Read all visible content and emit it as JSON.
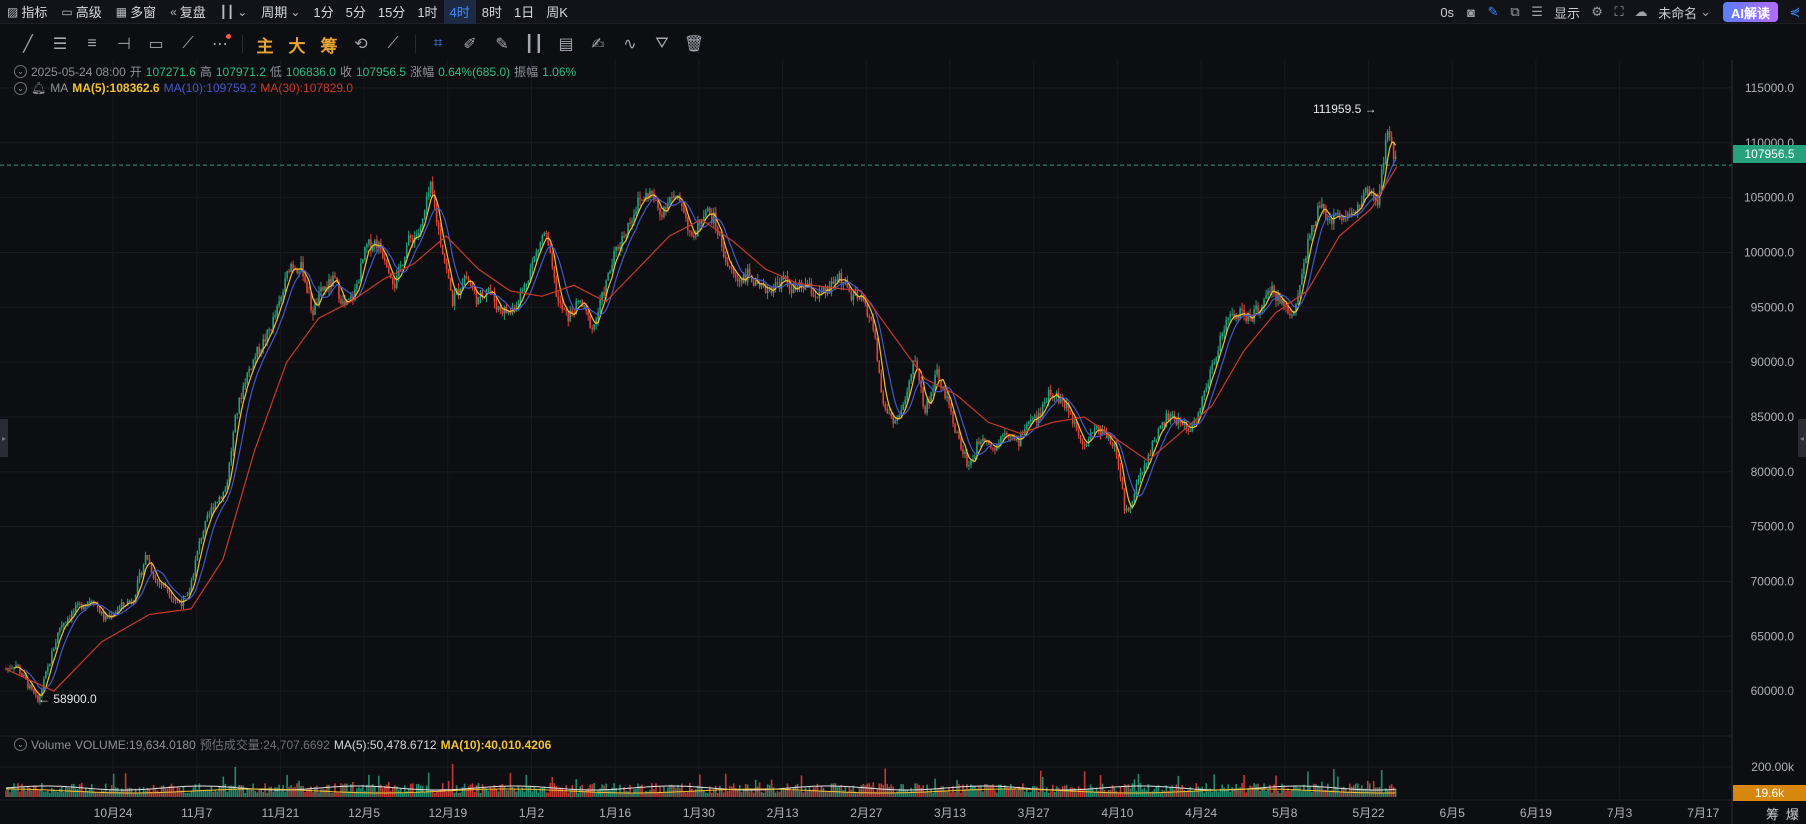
{
  "toolbar": {
    "indicators_label": "指标",
    "advanced_label": "高级",
    "multiwin_label": "多窗",
    "replay_label": "复盘",
    "period_label": "周期",
    "timeframes": [
      "1分",
      "5分",
      "15分",
      "1时",
      "4时",
      "8时",
      "1日",
      "周K"
    ],
    "active_timeframe": "4时",
    "countdown": "0s",
    "display_label": "显示",
    "layout_name": "未命名",
    "ai_label": "AI解读"
  },
  "draw_tools": {
    "main_label": "主",
    "big_label": "大",
    "chip_label": "筹"
  },
  "legend": {
    "date": "2025-05-24 08:00",
    "open_label": "开",
    "open": "107271.6",
    "high_label": "高",
    "high": "107971.2",
    "low_label": "低",
    "low": "106836.0",
    "close_label": "收",
    "close": "107956.5",
    "change_label": "涨幅",
    "change": "0.64%(685.0)",
    "amplitude_label": "振幅",
    "amplitude": "1.06%",
    "ma_name": "MA",
    "ma5": "MA(5):108362.6",
    "ma10": "MA(10):109759.2",
    "ma30": "MA(30):107829.0"
  },
  "volume_legend": {
    "name": "Volume",
    "volume": "VOLUME:19,634.0180",
    "estimated": "预估成交量:24,707.6692",
    "ma5": "MA(5):50,478.6712",
    "ma10": "MA(10):40,010.4206"
  },
  "current_price": "107956.5",
  "current_volume": "19.6k",
  "high_annotation": "111959.5 →",
  "low_annotation": "← 58900.0",
  "corner_labels": [
    "筹",
    "爆"
  ],
  "colors": {
    "up": "#26a17b",
    "down": "#e0433a",
    "ma5": "#f1c232",
    "ma10": "#4457c9",
    "ma30": "#c9392c",
    "background": "#0d0e11"
  },
  "chart_data": {
    "type": "candlestick",
    "timeframe": "4h",
    "y_ticks": [
      115000,
      110000,
      105000,
      100000,
      95000,
      90000,
      85000,
      80000,
      75000,
      70000,
      65000,
      60000
    ],
    "y_tick_labels": [
      "115000.0",
      "110000.0",
      "105000.0",
      "100000.0",
      "95000.0",
      "90000.0",
      "85000.0",
      "80000.0",
      "75000.0",
      "70000.0",
      "65000.0",
      "60000.0"
    ],
    "ylim": [
      56000,
      117000
    ],
    "volume_tick_label": "200.00k",
    "x_tick_labels": [
      "10月24",
      "11月7",
      "11月21",
      "12月5",
      "12月19",
      "1月2",
      "1月16",
      "1月30",
      "2月13",
      "2月27",
      "3月13",
      "3月27",
      "4月10",
      "4月24",
      "5月8",
      "5月22",
      "6月5",
      "6月19",
      "7月3",
      "7月17"
    ],
    "price_path": [
      [
        0,
        62000
      ],
      [
        0.3,
        62500
      ],
      [
        0.6,
        61000
      ],
      [
        1.0,
        59000
      ],
      [
        1.3,
        62000
      ],
      [
        1.7,
        66000
      ],
      [
        2.2,
        67500
      ],
      [
        2.7,
        68500
      ],
      [
        3.1,
        66500
      ],
      [
        3.5,
        67500
      ],
      [
        4.0,
        68500
      ],
      [
        4.4,
        72500
      ],
      [
        4.7,
        70000
      ],
      [
        5.0,
        69500
      ],
      [
        5.4,
        68000
      ],
      [
        5.7,
        68500
      ],
      [
        6.1,
        74000
      ],
      [
        6.5,
        77000
      ],
      [
        6.9,
        78500
      ],
      [
        7.2,
        85000
      ],
      [
        7.5,
        88500
      ],
      [
        7.8,
        90500
      ],
      [
        8.2,
        92500
      ],
      [
        8.6,
        95500
      ],
      [
        8.9,
        99000
      ],
      [
        9.3,
        98500
      ],
      [
        9.6,
        94500
      ],
      [
        9.9,
        96500
      ],
      [
        10.3,
        97500
      ],
      [
        10.6,
        95000
      ],
      [
        10.9,
        96000
      ],
      [
        11.3,
        100500
      ],
      [
        11.6,
        101000
      ],
      [
        11.9,
        99500
      ],
      [
        12.2,
        97000
      ],
      [
        12.6,
        101000
      ],
      [
        13.0,
        102000
      ],
      [
        13.3,
        106000
      ],
      [
        13.7,
        100000
      ],
      [
        14.0,
        95500
      ],
      [
        14.4,
        98000
      ],
      [
        14.8,
        95500
      ],
      [
        15.1,
        97000
      ],
      [
        15.4,
        95000
      ],
      [
        15.8,
        94500
      ],
      [
        16.2,
        96500
      ],
      [
        16.5,
        99000
      ],
      [
        16.9,
        102000
      ],
      [
        17.3,
        95500
      ],
      [
        17.6,
        94000
      ],
      [
        18.0,
        95500
      ],
      [
        18.4,
        93000
      ],
      [
        18.7,
        96000
      ],
      [
        19.1,
        100000
      ],
      [
        19.5,
        102500
      ],
      [
        19.8,
        104500
      ],
      [
        20.2,
        105500
      ],
      [
        20.5,
        103500
      ],
      [
        20.8,
        105000
      ],
      [
        21.2,
        104500
      ],
      [
        21.5,
        101000
      ],
      [
        21.9,
        104000
      ],
      [
        22.2,
        103000
      ],
      [
        22.6,
        99000
      ],
      [
        22.9,
        97500
      ],
      [
        23.3,
        98000
      ],
      [
        23.6,
        96500
      ],
      [
        24.0,
        96800
      ],
      [
        24.4,
        97500
      ],
      [
        24.7,
        96500
      ],
      [
        25.1,
        97000
      ],
      [
        25.4,
        96000
      ],
      [
        25.8,
        96500
      ],
      [
        26.1,
        98000
      ],
      [
        26.5,
        96000
      ],
      [
        26.9,
        95500
      ],
      [
        27.2,
        93000
      ],
      [
        27.5,
        86000
      ],
      [
        27.9,
        84500
      ],
      [
        28.2,
        86500
      ],
      [
        28.5,
        90500
      ],
      [
        28.8,
        85500
      ],
      [
        29.2,
        89000
      ],
      [
        29.6,
        85500
      ],
      [
        29.9,
        82500
      ],
      [
        30.2,
        80500
      ],
      [
        30.6,
        83500
      ],
      [
        31.0,
        82000
      ],
      [
        31.3,
        84000
      ],
      [
        31.7,
        82500
      ],
      [
        32.0,
        84500
      ],
      [
        32.4,
        85000
      ],
      [
        32.7,
        87500
      ],
      [
        33.1,
        86500
      ],
      [
        33.5,
        84500
      ],
      [
        33.8,
        82500
      ],
      [
        34.1,
        84000
      ],
      [
        34.5,
        83500
      ],
      [
        34.8,
        82000
      ],
      [
        35.1,
        76000
      ],
      [
        35.4,
        78500
      ],
      [
        35.7,
        80500
      ],
      [
        36.0,
        83000
      ],
      [
        36.4,
        85000
      ],
      [
        36.8,
        84500
      ],
      [
        37.2,
        84000
      ],
      [
        37.5,
        86500
      ],
      [
        37.9,
        90500
      ],
      [
        38.2,
        93500
      ],
      [
        38.6,
        94500
      ],
      [
        39.0,
        94000
      ],
      [
        39.3,
        95000
      ],
      [
        39.7,
        96500
      ],
      [
        40.0,
        95500
      ],
      [
        40.3,
        94000
      ],
      [
        40.6,
        97500
      ],
      [
        40.9,
        102500
      ],
      [
        41.2,
        104000
      ],
      [
        41.6,
        103000
      ],
      [
        41.9,
        103500
      ],
      [
        42.3,
        103500
      ],
      [
        42.6,
        105500
      ],
      [
        43.0,
        104500
      ],
      [
        43.3,
        111000
      ],
      [
        43.5,
        108900
      ],
      [
        43.6,
        107956
      ]
    ],
    "ma30_path": [
      [
        0,
        62000
      ],
      [
        1.5,
        60000
      ],
      [
        3,
        64500
      ],
      [
        4.5,
        67000
      ],
      [
        5.8,
        67500
      ],
      [
        6.8,
        72000
      ],
      [
        7.8,
        82000
      ],
      [
        8.8,
        90000
      ],
      [
        9.8,
        94000
      ],
      [
        10.8,
        95500
      ],
      [
        11.8,
        97500
      ],
      [
        12.8,
        99000
      ],
      [
        13.8,
        101500
      ],
      [
        14.8,
        98500
      ],
      [
        15.8,
        96500
      ],
      [
        16.8,
        96000
      ],
      [
        17.8,
        97000
      ],
      [
        18.8,
        95500
      ],
      [
        19.8,
        98500
      ],
      [
        20.8,
        101500
      ],
      [
        21.8,
        103000
      ],
      [
        22.8,
        101000
      ],
      [
        23.8,
        98500
      ],
      [
        24.8,
        97200
      ],
      [
        25.8,
        96800
      ],
      [
        26.8,
        96500
      ],
      [
        27.8,
        92500
      ],
      [
        28.8,
        88500
      ],
      [
        29.8,
        87000
      ],
      [
        30.8,
        84500
      ],
      [
        31.8,
        83500
      ],
      [
        32.8,
        84500
      ],
      [
        33.8,
        85000
      ],
      [
        34.8,
        83000
      ],
      [
        35.8,
        81000
      ],
      [
        36.8,
        83500
      ],
      [
        37.8,
        86000
      ],
      [
        38.8,
        91000
      ],
      [
        39.8,
        94500
      ],
      [
        40.8,
        96500
      ],
      [
        41.8,
        101500
      ],
      [
        42.8,
        104000
      ],
      [
        43.6,
        107829
      ]
    ]
  }
}
